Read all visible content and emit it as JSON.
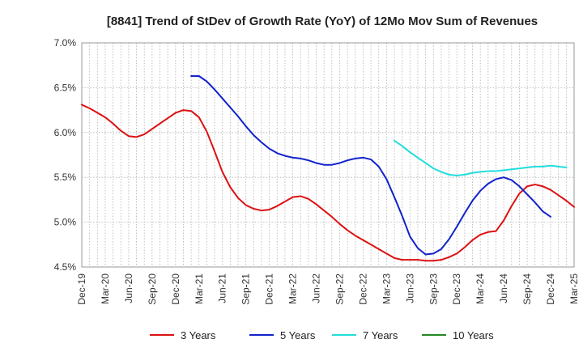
{
  "chart_data": {
    "type": "line",
    "title": "[8841]  Trend of StDev of Growth Rate (YoY) of 12Mo Mov Sum of Revenues",
    "xlabel": "",
    "ylabel": "",
    "ylim": [
      4.5,
      7.0
    ],
    "y_ticks": [
      4.5,
      5.0,
      5.5,
      6.0,
      6.5,
      7.0
    ],
    "y_tick_labels": [
      "4.5%",
      "5.0%",
      "5.5%",
      "6.0%",
      "6.5%",
      "7.0%"
    ],
    "x_tick_labels": [
      "Dec-19",
      "Mar-20",
      "Jun-20",
      "Sep-20",
      "Dec-20",
      "Mar-21",
      "Jun-21",
      "Sep-21",
      "Dec-21",
      "Mar-22",
      "Jun-22",
      "Sep-22",
      "Dec-22",
      "Mar-23",
      "Jun-23",
      "Sep-23",
      "Dec-23",
      "Mar-24",
      "Jun-24",
      "Sep-24",
      "Dec-24",
      "Mar-25"
    ],
    "grid": true,
    "legend_position": "bottom",
    "series": [
      {
        "name": "3 Years",
        "color": "#dd1111",
        "start_index": 0,
        "values": [
          6.31,
          6.27,
          6.22,
          6.17,
          6.1,
          6.02,
          5.96,
          5.95,
          5.98,
          6.04,
          6.1,
          6.16,
          6.22,
          6.25,
          6.24,
          6.17,
          6.01,
          5.79,
          5.56,
          5.39,
          5.27,
          5.19,
          5.15,
          5.13,
          5.14,
          5.18,
          5.23,
          5.28,
          5.29,
          5.26,
          5.2,
          5.13,
          5.06,
          4.98,
          4.91,
          4.85,
          4.8,
          4.75,
          4.7,
          4.65,
          4.6,
          4.58,
          4.58,
          4.58,
          4.57,
          4.57,
          4.58,
          4.61,
          4.65,
          4.72,
          4.8,
          4.86,
          4.89,
          4.9,
          5.02,
          5.18,
          5.32,
          5.4,
          5.42,
          5.4,
          5.36,
          5.3,
          5.24,
          5.17
        ]
      },
      {
        "name": "5 Years",
        "color": "#1122cc",
        "start_index": 14,
        "values": [
          6.63,
          6.63,
          6.57,
          6.48,
          6.38,
          6.28,
          6.18,
          6.07,
          5.97,
          5.89,
          5.82,
          5.77,
          5.74,
          5.72,
          5.71,
          5.69,
          5.66,
          5.64,
          5.64,
          5.66,
          5.69,
          5.71,
          5.72,
          5.7,
          5.62,
          5.48,
          5.28,
          5.07,
          4.84,
          4.71,
          4.64,
          4.65,
          4.7,
          4.81,
          4.95,
          5.1,
          5.24,
          5.35,
          5.43,
          5.48,
          5.5,
          5.47,
          5.4,
          5.31,
          5.22,
          5.12,
          5.06
        ]
      },
      {
        "name": "7 Years",
        "color": "#22dddd",
        "start_index": 40,
        "values": [
          5.91,
          5.85,
          5.78,
          5.72,
          5.66,
          5.6,
          5.56,
          5.53,
          5.52,
          5.53,
          5.55,
          5.56,
          5.57,
          5.57,
          5.58,
          5.59,
          5.6,
          5.61,
          5.62,
          5.62,
          5.63,
          5.62,
          5.61
        ]
      },
      {
        "name": "10 Years",
        "color": "#228822",
        "start_index": 0,
        "values": []
      }
    ]
  }
}
